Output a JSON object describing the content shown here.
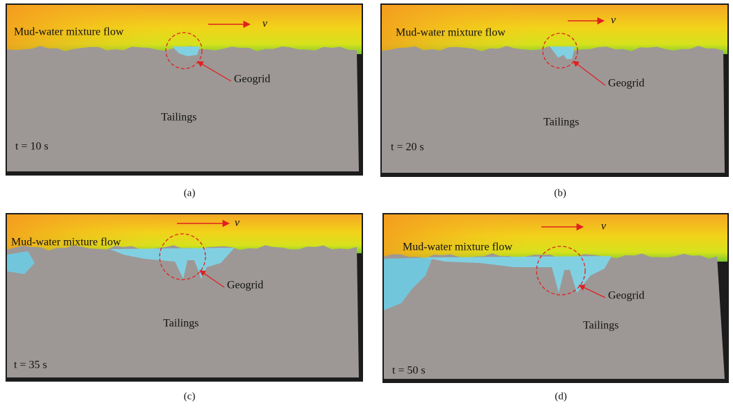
{
  "panels": [
    {
      "flow_label": "Mud-water mixture flow",
      "velocity": "v",
      "geogrid": "Geogrid",
      "tailings": "Tailings",
      "time": "t = 10 s",
      "caption": "(a)"
    },
    {
      "flow_label": "Mud-water mixture flow",
      "velocity": "v",
      "geogrid": "Geogrid",
      "tailings": "Tailings",
      "time": "t = 20 s",
      "caption": "(b)"
    },
    {
      "flow_label": "Mud-water mixture flow",
      "velocity": "v",
      "geogrid": "Geogrid",
      "tailings": "Tailings",
      "time": "t = 35 s",
      "caption": "(c)"
    },
    {
      "flow_label": "Mud-water mixture flow",
      "velocity": "v",
      "geogrid": "Geogrid",
      "tailings": "Tailings",
      "time": "t = 50 s",
      "caption": "(d)"
    }
  ]
}
